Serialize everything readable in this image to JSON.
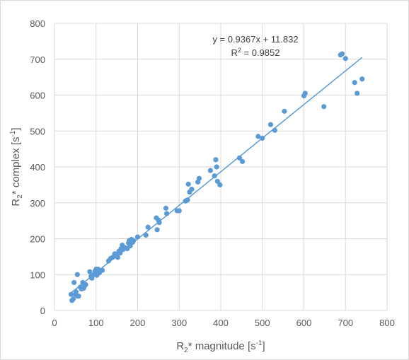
{
  "chart_data": {
    "type": "scatter",
    "xlabel": {
      "base": "R",
      "sub": "2",
      "mid": "* magnitude [s",
      "sup": "-1",
      "end": "]"
    },
    "ylabel": {
      "base": "R",
      "sub": "2",
      "mid": "* complex [s",
      "sup": "-1",
      "end": "]"
    },
    "xlim": [
      0,
      800
    ],
    "ylim": [
      0,
      800
    ],
    "xticks": [
      0,
      100,
      200,
      300,
      400,
      500,
      600,
      700,
      800
    ],
    "yticks": [
      0,
      100,
      200,
      300,
      400,
      500,
      600,
      700,
      800
    ],
    "grid": true,
    "legend": false,
    "colors": {
      "marker": "#5B9BD5",
      "trendline": "#5B9BD5",
      "grid": "#d9d9d9",
      "text": "#595959"
    },
    "trendline": {
      "type": "linear",
      "slope": 0.9367,
      "intercept": 11.832,
      "x_range": [
        40,
        740
      ],
      "equation_label": "y = 0.9367x + 11.832",
      "r2_label": {
        "base": "R",
        "sup": "2",
        "end": " = 0.9852"
      }
    },
    "points": [
      [
        40,
        45
      ],
      [
        42,
        28
      ],
      [
        45,
        32
      ],
      [
        47,
        78
      ],
      [
        50,
        45
      ],
      [
        52,
        52
      ],
      [
        55,
        40
      ],
      [
        55,
        100
      ],
      [
        58,
        40
      ],
      [
        62,
        65
      ],
      [
        65,
        60
      ],
      [
        68,
        78
      ],
      [
        70,
        62
      ],
      [
        72,
        68
      ],
      [
        75,
        72
      ],
      [
        85,
        108
      ],
      [
        88,
        95
      ],
      [
        90,
        90
      ],
      [
        95,
        100
      ],
      [
        98,
        110
      ],
      [
        100,
        115
      ],
      [
        102,
        98
      ],
      [
        105,
        115
      ],
      [
        108,
        105
      ],
      [
        110,
        110
      ],
      [
        115,
        112
      ],
      [
        130,
        138
      ],
      [
        135,
        145
      ],
      [
        140,
        148
      ],
      [
        145,
        158
      ],
      [
        150,
        155
      ],
      [
        152,
        148
      ],
      [
        155,
        165
      ],
      [
        158,
        160
      ],
      [
        160,
        172
      ],
      [
        163,
        182
      ],
      [
        165,
        170
      ],
      [
        170,
        175
      ],
      [
        175,
        172
      ],
      [
        178,
        188
      ],
      [
        180,
        195
      ],
      [
        182,
        180
      ],
      [
        185,
        198
      ],
      [
        188,
        190
      ],
      [
        190,
        195
      ],
      [
        200,
        205
      ],
      [
        220,
        210
      ],
      [
        225,
        232
      ],
      [
        245,
        258
      ],
      [
        247,
        225
      ],
      [
        250,
        252
      ],
      [
        252,
        245
      ],
      [
        268,
        285
      ],
      [
        270,
        270
      ],
      [
        295,
        278
      ],
      [
        300,
        278
      ],
      [
        315,
        305
      ],
      [
        320,
        308
      ],
      [
        322,
        352
      ],
      [
        325,
        330
      ],
      [
        330,
        338
      ],
      [
        345,
        358
      ],
      [
        348,
        368
      ],
      [
        375,
        390
      ],
      [
        385,
        375
      ],
      [
        388,
        420
      ],
      [
        390,
        400
      ],
      [
        392,
        360
      ],
      [
        398,
        350
      ],
      [
        445,
        425
      ],
      [
        452,
        415
      ],
      [
        490,
        485
      ],
      [
        500,
        480
      ],
      [
        520,
        518
      ],
      [
        530,
        502
      ],
      [
        553,
        555
      ],
      [
        600,
        598
      ],
      [
        603,
        605
      ],
      [
        648,
        568
      ],
      [
        688,
        712
      ],
      [
        692,
        715
      ],
      [
        700,
        702
      ],
      [
        722,
        635
      ],
      [
        728,
        605
      ],
      [
        740,
        645
      ]
    ]
  }
}
